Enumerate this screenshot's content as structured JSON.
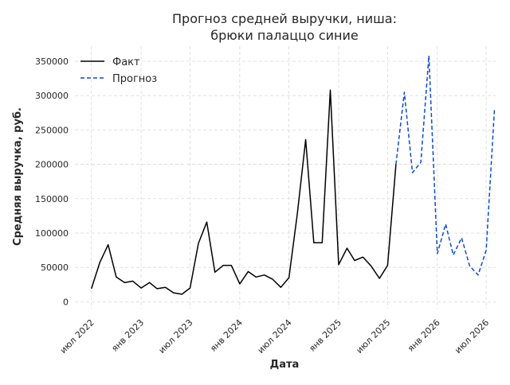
{
  "chart_data": {
    "type": "line",
    "title_line1": "Прогноз средней выручки, ниша:",
    "title_line2": "брюки палаццо синие",
    "xlabel": "Дата",
    "ylabel": "Средняя выручка, руб.",
    "grid": true,
    "legend_position": "top-left",
    "ylim": [
      -10000,
      372000
    ],
    "xlim": [
      "2022-05-01",
      "2026-08-05"
    ],
    "x_ticks": [
      {
        "date": "2022-07-01",
        "label": "июл 2022"
      },
      {
        "date": "2023-01-01",
        "label": "янв 2023"
      },
      {
        "date": "2023-07-01",
        "label": "июл 2023"
      },
      {
        "date": "2024-01-01",
        "label": "янв 2024"
      },
      {
        "date": "2024-07-01",
        "label": "июл 2024"
      },
      {
        "date": "2025-01-01",
        "label": "янв 2025"
      },
      {
        "date": "2025-07-01",
        "label": "июл 2025"
      },
      {
        "date": "2026-01-01",
        "label": "янв 2026"
      },
      {
        "date": "2026-07-01",
        "label": "июл 2026"
      }
    ],
    "y_ticks": [
      0,
      50000,
      100000,
      150000,
      200000,
      250000,
      300000,
      350000
    ],
    "series": [
      {
        "name": "Факт",
        "color": "#000000",
        "dash": false,
        "x": [
          "2022-07-01",
          "2022-08-01",
          "2022-09-01",
          "2022-10-01",
          "2022-11-01",
          "2022-12-01",
          "2023-01-01",
          "2023-02-01",
          "2023-03-01",
          "2023-04-01",
          "2023-05-01",
          "2023-06-01",
          "2023-07-01",
          "2023-08-01",
          "2023-09-01",
          "2023-10-01",
          "2023-11-01",
          "2023-12-01",
          "2024-01-01",
          "2024-02-01",
          "2024-03-01",
          "2024-04-01",
          "2024-05-01",
          "2024-06-01",
          "2024-07-01",
          "2024-08-01",
          "2024-09-01",
          "2024-10-01",
          "2024-11-01",
          "2024-12-01",
          "2025-01-01",
          "2025-02-01",
          "2025-03-01",
          "2025-04-01",
          "2025-05-01",
          "2025-06-01",
          "2025-07-01",
          "2025-08-01"
        ],
        "values": [
          19000,
          57000,
          83000,
          36000,
          28000,
          30000,
          20000,
          28000,
          19000,
          21000,
          13000,
          11000,
          20000,
          85000,
          116000,
          43000,
          53000,
          53000,
          26000,
          44000,
          36000,
          39000,
          33000,
          21000,
          35000,
          128000,
          236000,
          86000,
          86000,
          308000,
          54000,
          78000,
          60000,
          65000,
          52000,
          34000,
          53000,
          200000
        ]
      },
      {
        "name": "Прогноз",
        "color": "#0a4ad3",
        "dash": true,
        "x": [
          "2025-08-01",
          "2025-09-01",
          "2025-10-01",
          "2025-11-01",
          "2025-12-01",
          "2026-01-01",
          "2026-02-01",
          "2026-03-01",
          "2026-04-01",
          "2026-05-01",
          "2026-06-01",
          "2026-07-01",
          "2026-08-01"
        ],
        "values": [
          200000,
          305000,
          188000,
          203000,
          358000,
          70000,
          113000,
          68000,
          93000,
          52000,
          39000,
          75000,
          282000
        ]
      }
    ]
  }
}
